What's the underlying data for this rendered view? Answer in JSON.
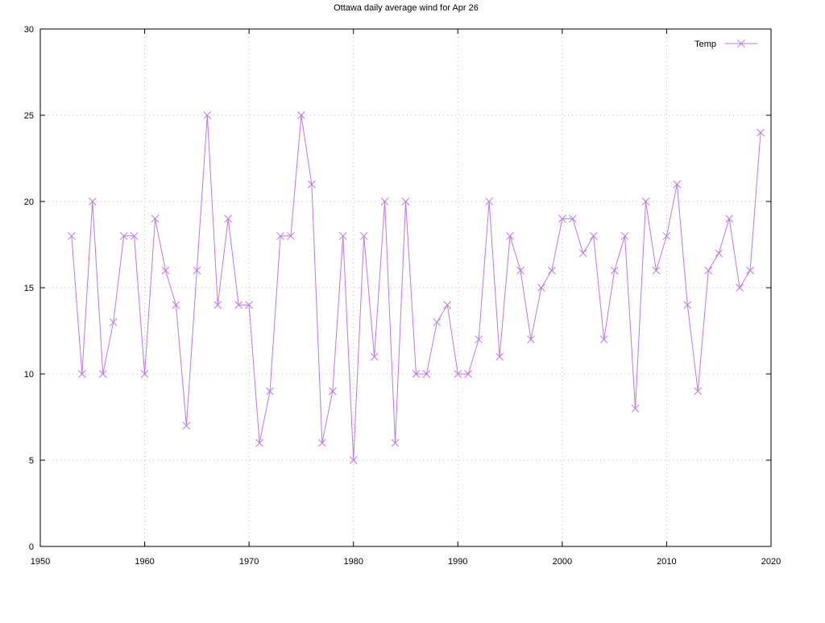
{
  "chart_data": {
    "type": "line",
    "title": "Ottawa daily average wind for Apr 26",
    "xlabel": "",
    "ylabel": "",
    "xlim": [
      1950,
      2020
    ],
    "ylim": [
      0,
      30
    ],
    "xticks": [
      1950,
      1960,
      1970,
      1980,
      1990,
      2000,
      2010,
      2020
    ],
    "yticks": [
      0,
      5,
      10,
      15,
      20,
      25,
      30
    ],
    "grid": true,
    "legend_position": "top-right",
    "series": [
      {
        "name": "Temp",
        "color": "#bb77ee",
        "marker": "x",
        "x": [
          1953,
          1954,
          1955,
          1956,
          1957,
          1958,
          1959,
          1960,
          1961,
          1962,
          1963,
          1964,
          1965,
          1966,
          1967,
          1968,
          1969,
          1970,
          1971,
          1972,
          1973,
          1974,
          1975,
          1976,
          1977,
          1978,
          1979,
          1980,
          1981,
          1982,
          1983,
          1984,
          1985,
          1986,
          1987,
          1988,
          1989,
          1990,
          1991,
          1992,
          1993,
          1994,
          1995,
          1996,
          1997,
          1998,
          1999,
          2000,
          2001,
          2002,
          2003,
          2004,
          2005,
          2006,
          2007,
          2008,
          2009,
          2010,
          2011,
          2012,
          2013,
          2014,
          2015,
          2016,
          2017,
          2018,
          2019
        ],
        "y": [
          18,
          10,
          20,
          10,
          13,
          18,
          18,
          10,
          19,
          16,
          14,
          7,
          16,
          25,
          14,
          19,
          14,
          14,
          6,
          9,
          18,
          18,
          25,
          21,
          6,
          9,
          18,
          5,
          18,
          11,
          20,
          6,
          20,
          10,
          10,
          13,
          14,
          10,
          10,
          12,
          20,
          11,
          18,
          16,
          12,
          15,
          16,
          19,
          19,
          17,
          18,
          12,
          16,
          18,
          8,
          20,
          16,
          18,
          21,
          14,
          9,
          16,
          17,
          19,
          15,
          16,
          24
        ]
      }
    ]
  }
}
